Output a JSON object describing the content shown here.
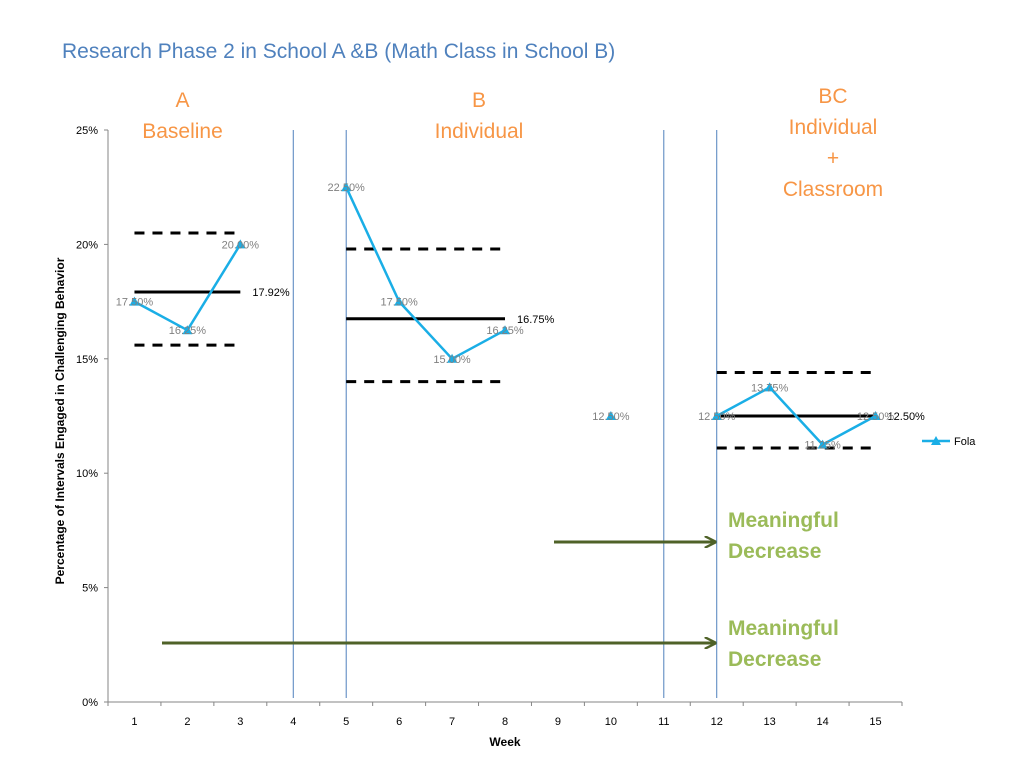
{
  "title": "Research Phase 2 in School A &B (Math Class in School B)",
  "phases": {
    "a": {
      "line1": "A",
      "line2": "Baseline"
    },
    "b": {
      "line1": "B",
      "line2": "Individual"
    },
    "bc": {
      "line1": "BC",
      "line2": "Individual",
      "line3": "+",
      "line4": "Classroom"
    }
  },
  "notes": {
    "upper": {
      "line1": "Meaningful",
      "line2": "Decrease"
    },
    "lower": {
      "line1": "Meaningful",
      "line2": "Decrease"
    }
  },
  "colors": {
    "series": "#1aaee6",
    "title": "#4f81bd",
    "phase": "#f79646",
    "note": "#9bbb59",
    "arrow": "#4f6228",
    "divider": "#4f81bd"
  },
  "chart_data": {
    "type": "line",
    "categories": [
      "1",
      "2",
      "3",
      "4",
      "5",
      "6",
      "7",
      "8",
      "9",
      "10",
      "11",
      "12",
      "13",
      "14",
      "15"
    ],
    "series": [
      {
        "name": "Fola",
        "values": [
          17.5,
          16.25,
          20.0,
          null,
          22.5,
          17.5,
          15.0,
          16.25,
          null,
          12.5,
          null,
          12.5,
          13.75,
          11.25,
          12.5
        ],
        "labels": [
          "17.50%",
          "16.25%",
          "20.00%",
          null,
          "22.50%",
          "17.50%",
          "15.00%",
          "16.25%",
          null,
          "12.50%",
          null,
          "12.50%",
          "13.75%",
          "11.25%",
          "12.50%"
        ]
      }
    ],
    "xlabel": "Week",
    "ylabel": "Percentage of Intervals Engaged in Challenging Behavior",
    "ylim": [
      0,
      25
    ],
    "yticks": [
      0,
      5,
      10,
      15,
      20,
      25
    ],
    "ytick_labels": [
      "0%",
      "5%",
      "10%",
      "15%",
      "20%",
      "25%"
    ],
    "legend_position": "right",
    "grid": false,
    "phase_means": [
      {
        "phase": "A",
        "from": "1",
        "to": "3",
        "value": 17.92,
        "label": "17.92%",
        "upper": 20.5,
        "lower": 15.6
      },
      {
        "phase": "B",
        "from": "5",
        "to": "8",
        "value": 16.75,
        "label": "16.75%",
        "upper": 19.8,
        "lower": 14.0
      },
      {
        "phase": "BC",
        "from": "12",
        "to": "15",
        "value": 12.5,
        "label": "12.50%",
        "upper": 14.4,
        "lower": 11.1
      }
    ],
    "phase_dividers": [
      "3.5",
      "4.5",
      "10.5",
      "11.5"
    ]
  }
}
